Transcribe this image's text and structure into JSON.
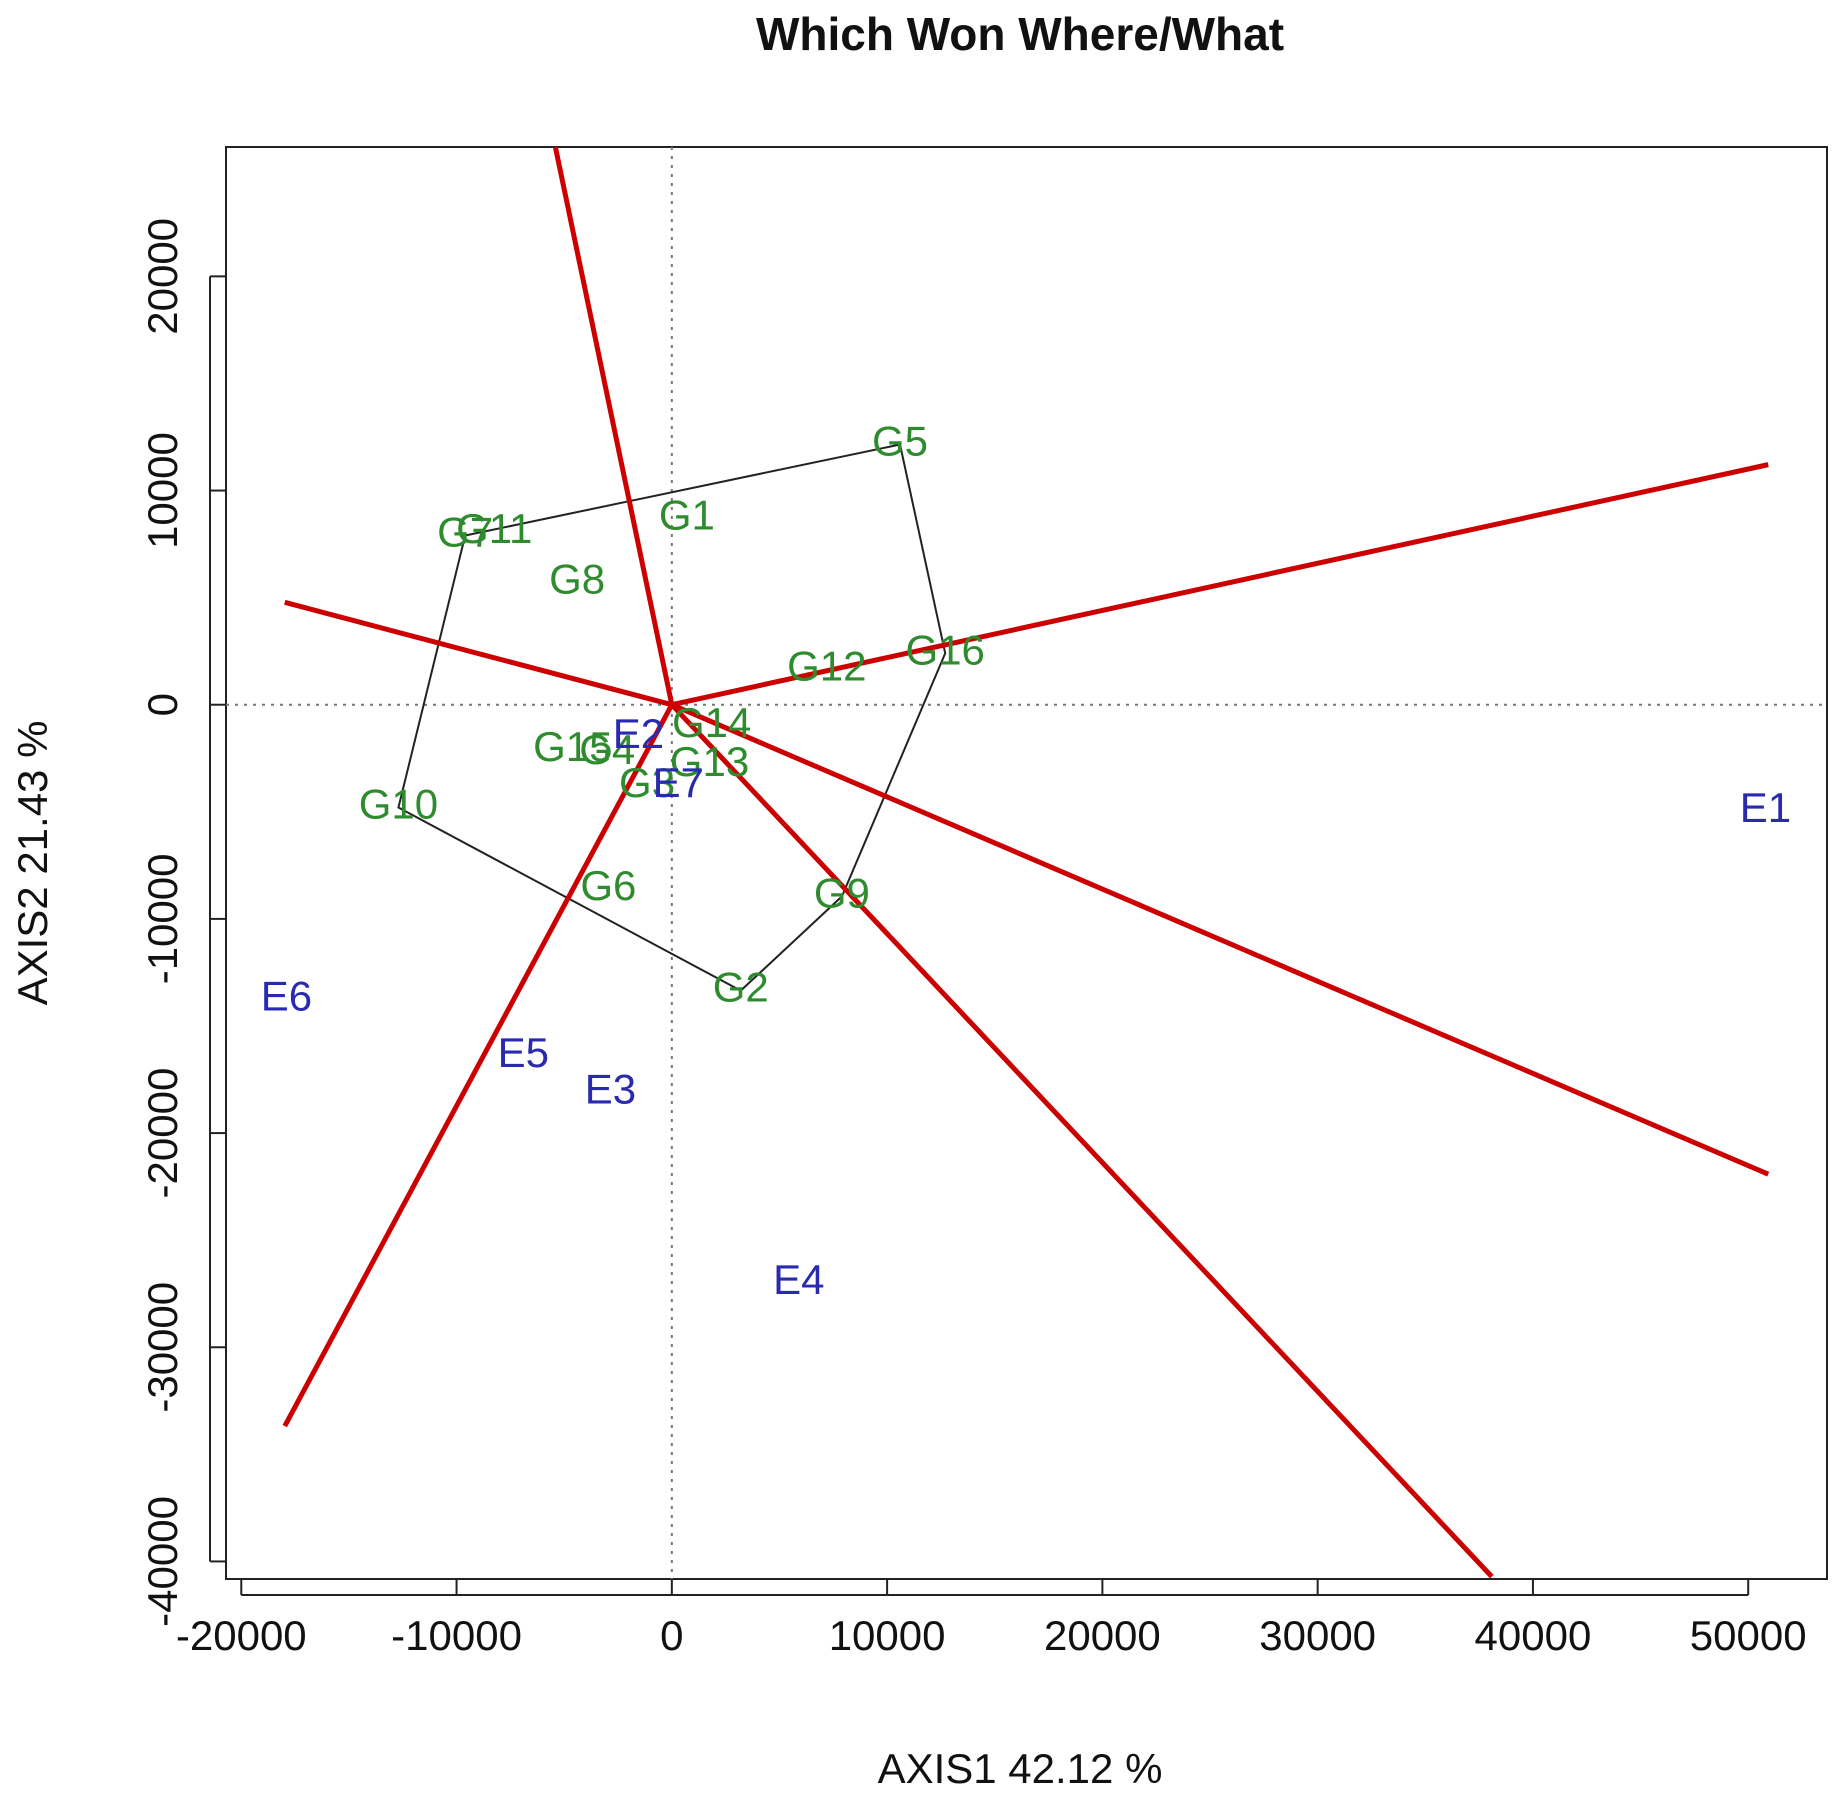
{
  "chart_data": {
    "type": "biplot",
    "title": "Which Won Where/What",
    "x_label": "AXIS1 42.12 %",
    "y_label": "AXIS2 21.43 %",
    "xlim": [
      -20710,
      53660
    ],
    "ylim": [
      -40820,
      26040
    ],
    "xticks": [
      -20000,
      -10000,
      0,
      10000,
      20000,
      30000,
      40000,
      50000
    ],
    "yticks": [
      -40000,
      -30000,
      -20000,
      -10000,
      0,
      10000,
      20000
    ],
    "zero_lines": true,
    "genotypes": {
      "color": "#2e8b2e",
      "labels": [
        "G1",
        "G2",
        "G3",
        "G4",
        "G5",
        "G6",
        "G7",
        "G8",
        "G9",
        "G10",
        "G11",
        "G12",
        "G13",
        "G14",
        "G15",
        "G16"
      ],
      "x": [
        700,
        3200,
        -1150,
        -3000,
        10600,
        -2950,
        -9600,
        -4400,
        7900,
        -12700,
        -8250,
        7200,
        1750,
        1850,
        -4600,
        12700
      ],
      "y": [
        8700,
        -13350,
        -3800,
        -2250,
        12150,
        -8600,
        7900,
        5700,
        -8950,
        -4800,
        8080,
        1650,
        -2800,
        -1000,
        -2100,
        2400
      ]
    },
    "environments": {
      "color": "#2a2ab0",
      "labels": [
        "E1",
        "E2",
        "E3",
        "E4",
        "E5",
        "E6",
        "E7"
      ],
      "x": [
        50800,
        -1550,
        -2850,
        5900,
        -6900,
        -17900,
        300
      ],
      "y": [
        -4950,
        -1500,
        -18100,
        -27000,
        -16400,
        -13750,
        -3800
      ]
    },
    "hull": {
      "color": "#222222",
      "vertices": [
        "G5",
        "G16",
        "G9",
        "G2",
        "G10",
        "G7"
      ]
    },
    "rays": {
      "color": "#cc0000",
      "x": [
        -5410,
        50930,
        50930,
        38090,
        -17980,
        -17980
      ],
      "y": [
        26040,
        11210,
        -21920,
        -40710,
        -33680,
        4780
      ]
    }
  }
}
